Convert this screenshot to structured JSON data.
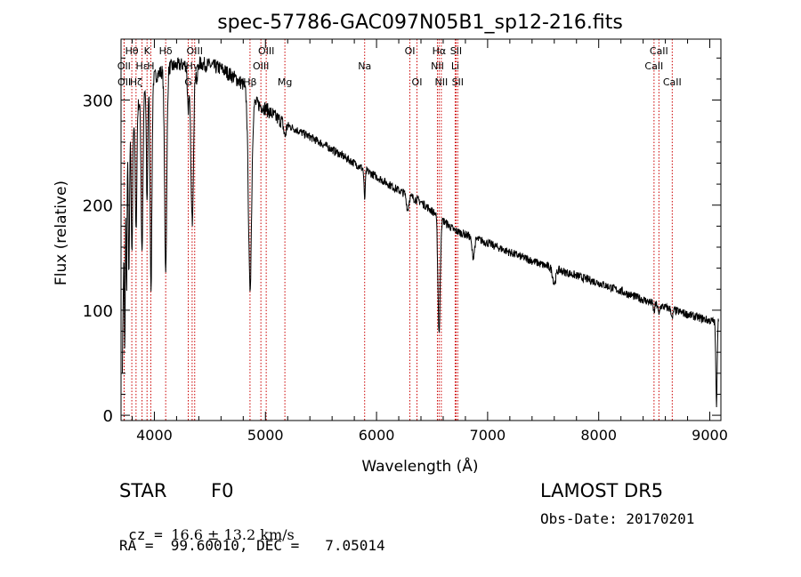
{
  "chart_data": {
    "type": "line",
    "title": "spec-57786-GAC097N05B1_sp12-216.fits",
    "xlabel": "Wavelength (Å)",
    "ylabel": "Flux (relative)",
    "xlim": [
      3700,
      9100
    ],
    "ylim": [
      -5,
      358
    ],
    "x_ticks": [
      4000,
      5000,
      6000,
      7000,
      8000,
      9000
    ],
    "y_ticks": [
      0,
      100,
      200,
      300
    ],
    "grid": false,
    "line_color": "#000000",
    "marker_color": "#cc0000",
    "line_markers": [
      {
        "label": "Hθ",
        "wavelength": 3797,
        "row": 0
      },
      {
        "label": "K",
        "wavelength": 3934,
        "row": 0
      },
      {
        "label": "Hδ",
        "wavelength": 4102,
        "row": 0
      },
      {
        "label": "OIII",
        "wavelength": 4363,
        "row": 0
      },
      {
        "label": "OIII",
        "wavelength": 5007,
        "row": 0
      },
      {
        "label": "OI",
        "wavelength": 6300,
        "row": 0
      },
      {
        "label": "Hα",
        "wavelength": 6563,
        "row": 0
      },
      {
        "label": "SII",
        "wavelength": 6716,
        "row": 0
      },
      {
        "label": "CaII",
        "wavelength": 8542,
        "row": 0
      },
      {
        "label": "OII",
        "wavelength": 3727,
        "row": 1
      },
      {
        "label": "Hε",
        "wavelength": 3889,
        "row": 1
      },
      {
        "label": "H",
        "wavelength": 3968,
        "row": 1
      },
      {
        "label": "Hγ",
        "wavelength": 4340,
        "row": 1
      },
      {
        "label": "OIII",
        "wavelength": 4959,
        "row": 1
      },
      {
        "label": "Na",
        "wavelength": 5893,
        "row": 1
      },
      {
        "label": "NII",
        "wavelength": 6548,
        "row": 1
      },
      {
        "label": "Li",
        "wavelength": 6708,
        "row": 1
      },
      {
        "label": "CaII",
        "wavelength": 8498,
        "row": 1
      },
      {
        "label": "OII",
        "wavelength": 3729,
        "row": 2
      },
      {
        "label": "Hζ",
        "wavelength": 3835,
        "row": 2
      },
      {
        "label": "G",
        "wavelength": 4305,
        "row": 2
      },
      {
        "label": "Hβ",
        "wavelength": 4861,
        "row": 2
      },
      {
        "label": "Mg",
        "wavelength": 5175,
        "row": 2
      },
      {
        "label": "OI",
        "wavelength": 6364,
        "row": 2
      },
      {
        "label": "NII",
        "wavelength": 6583,
        "row": 2
      },
      {
        "label": "SII",
        "wavelength": 6731,
        "row": 2
      },
      {
        "label": "CaII",
        "wavelength": 8662,
        "row": 2
      }
    ],
    "continuum": [
      [
        3710,
        30
      ],
      [
        3730,
        200
      ],
      [
        3760,
        255
      ],
      [
        3800,
        275
      ],
      [
        3850,
        295
      ],
      [
        3900,
        305
      ],
      [
        3950,
        315
      ],
      [
        4000,
        322
      ],
      [
        4100,
        330
      ],
      [
        4200,
        333
      ],
      [
        4300,
        334
      ],
      [
        4400,
        335
      ],
      [
        4500,
        333
      ],
      [
        4600,
        330
      ],
      [
        4700,
        323
      ],
      [
        4800,
        315
      ],
      [
        4850,
        302
      ],
      [
        4900,
        298
      ],
      [
        5000,
        292
      ],
      [
        5100,
        283
      ],
      [
        5200,
        276
      ],
      [
        5400,
        265
      ],
      [
        5600,
        253
      ],
      [
        5800,
        240
      ],
      [
        6000,
        227
      ],
      [
        6200,
        214
      ],
      [
        6400,
        203
      ],
      [
        6550,
        190
      ],
      [
        6700,
        176
      ],
      [
        6900,
        168
      ],
      [
        7000,
        164
      ],
      [
        7200,
        155
      ],
      [
        7500,
        143
      ],
      [
        8000,
        126
      ],
      [
        8500,
        106
      ],
      [
        8800,
        96
      ],
      [
        9000,
        90
      ],
      [
        9050,
        89
      ],
      [
        9080,
        92
      ]
    ],
    "absorption": [
      {
        "wavelength": 3734,
        "depth": 150,
        "width": 4
      },
      {
        "wavelength": 3750,
        "depth": 120,
        "width": 4
      },
      {
        "wavelength": 3771,
        "depth": 130,
        "width": 5
      },
      {
        "wavelength": 3798,
        "depth": 125,
        "width": 6
      },
      {
        "wavelength": 3835,
        "depth": 115,
        "width": 7
      },
      {
        "wavelength": 3889,
        "depth": 145,
        "width": 8
      },
      {
        "wavelength": 3934,
        "depth": 110,
        "width": 6
      },
      {
        "wavelength": 3970,
        "depth": 195,
        "width": 8
      },
      {
        "wavelength": 4102,
        "depth": 190,
        "width": 10
      },
      {
        "wavelength": 4305,
        "depth": 40,
        "width": 8
      },
      {
        "wavelength": 4340,
        "depth": 150,
        "width": 12
      },
      {
        "wavelength": 4383,
        "depth": 20,
        "width": 6
      },
      {
        "wavelength": 4861,
        "depth": 180,
        "width": 14
      },
      {
        "wavelength": 5175,
        "depth": 12,
        "width": 10
      },
      {
        "wavelength": 5893,
        "depth": 28,
        "width": 6
      },
      {
        "wavelength": 6280,
        "depth": 14,
        "width": 10
      },
      {
        "wavelength": 6563,
        "depth": 110,
        "width": 10
      },
      {
        "wavelength": 6870,
        "depth": 18,
        "width": 12
      },
      {
        "wavelength": 7600,
        "depth": 14,
        "width": 14
      },
      {
        "wavelength": 8498,
        "depth": 8,
        "width": 6
      },
      {
        "wavelength": 8542,
        "depth": 10,
        "width": 6
      },
      {
        "wavelength": 8662,
        "depth": 10,
        "width": 6
      },
      {
        "wavelength": 9060,
        "depth": 80,
        "width": 6
      }
    ]
  },
  "info": {
    "obj_class": "STAR",
    "subclass": "F0",
    "survey": "LAMOST DR5",
    "cz_label": "cz = ",
    "cz_value": "16.6 ± 13.2 km/s",
    "obs_date": "Obs-Date: 20170201",
    "coords": "RA =  99.60010, DEC =   7.05014"
  }
}
